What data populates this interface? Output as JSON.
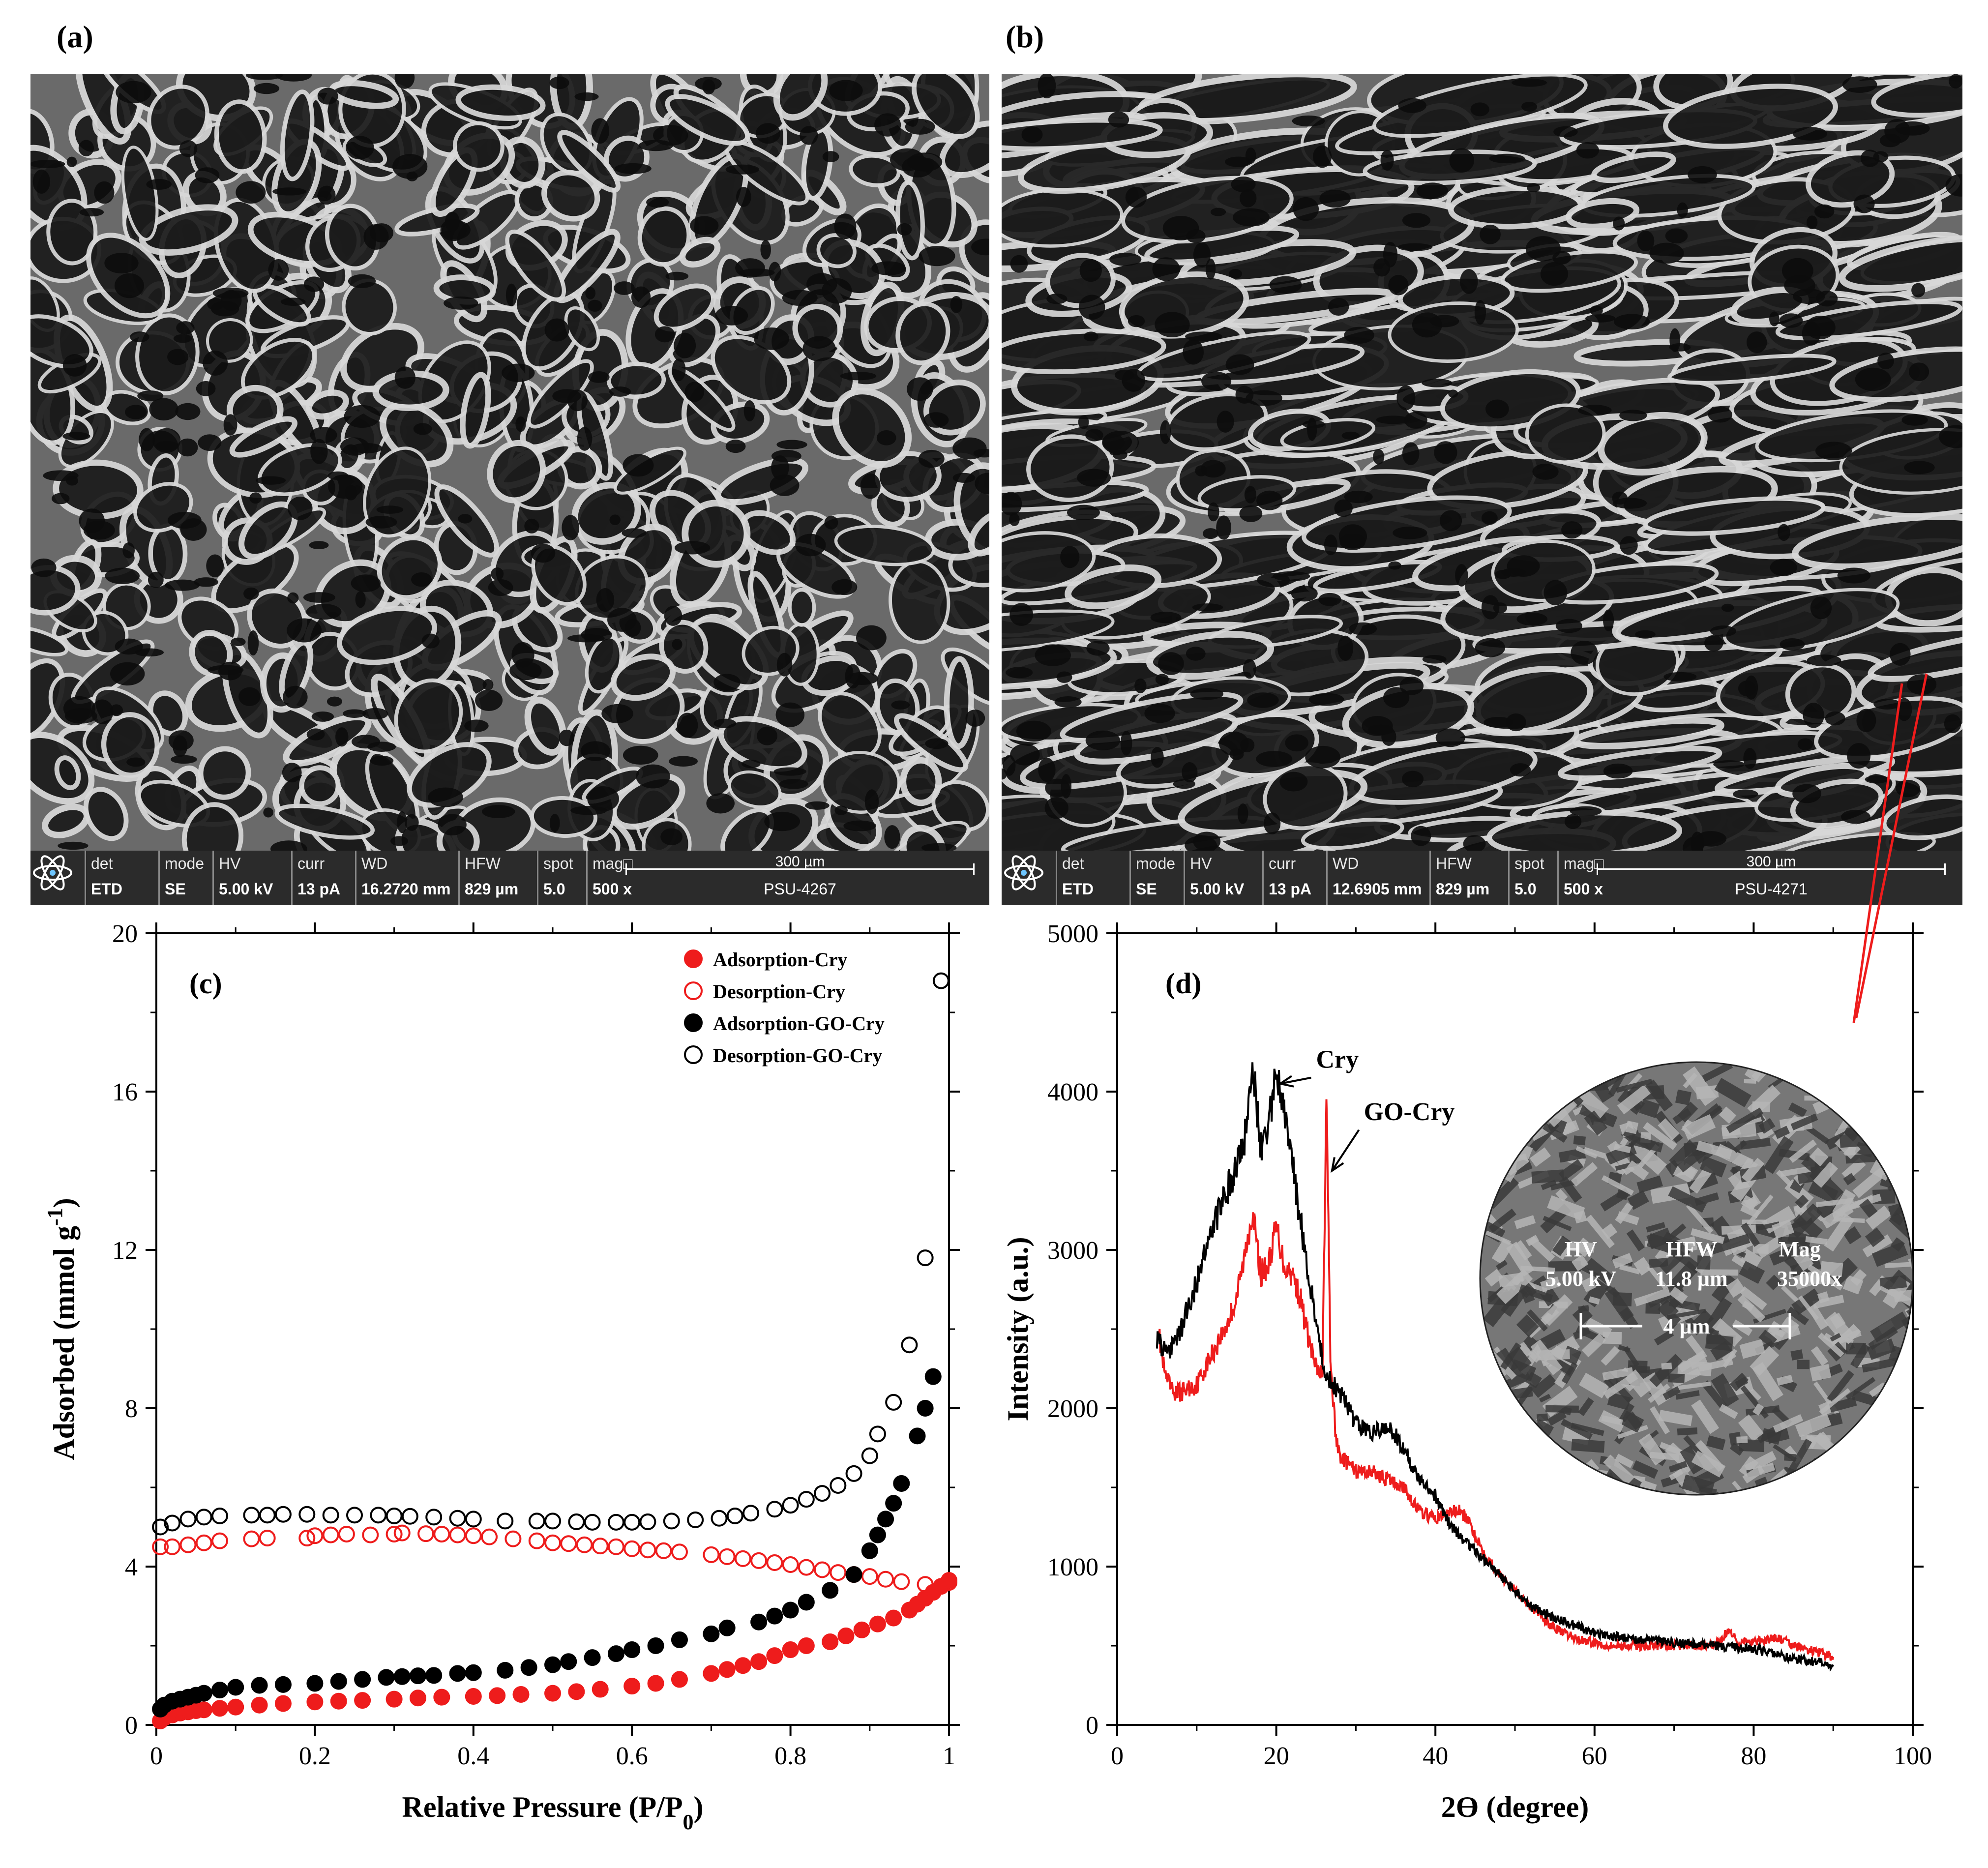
{
  "panels": {
    "a": {
      "label": "(a)",
      "databar": {
        "cells": [
          {
            "k": "det",
            "v": "ETD"
          },
          {
            "k": "mode",
            "v": "SE"
          },
          {
            "k": "HV",
            "v": "5.00 kV"
          },
          {
            "k": "curr",
            "v": "13 pA"
          },
          {
            "k": "WD",
            "v": "16.2720 mm"
          },
          {
            "k": "HFW",
            "v": "829 µm"
          },
          {
            "k": "spot",
            "v": "5.0"
          },
          {
            "k": "mag□",
            "v": "500 x"
          }
        ],
        "scale": "300 µm",
        "id": "PSU-4267"
      }
    },
    "b": {
      "label": "(b)",
      "databar": {
        "cells": [
          {
            "k": "det",
            "v": "ETD"
          },
          {
            "k": "mode",
            "v": "SE"
          },
          {
            "k": "HV",
            "v": "5.00 kV"
          },
          {
            "k": "curr",
            "v": "13 pA"
          },
          {
            "k": "WD",
            "v": "12.6905 mm"
          },
          {
            "k": "HFW",
            "v": "829 µm"
          },
          {
            "k": "spot",
            "v": "5.0"
          },
          {
            "k": "mag□",
            "v": "500 x"
          }
        ],
        "scale": "300 µm",
        "id": "PSU-4271"
      },
      "inset": {
        "hv_k": "HV",
        "hv_v": "5.00 kV",
        "hfw_k": "HFW",
        "hfw_v": "11.8 µm",
        "mag_k": "Mag",
        "mag_v": "35000x",
        "scale": "4 µm"
      }
    },
    "c": {
      "label": "(c)"
    },
    "d": {
      "label": "(d)"
    }
  },
  "colors": {
    "red": "#ee1c1c",
    "black": "#000000"
  },
  "chart_data": [
    {
      "type": "scatter",
      "panel": "(c)",
      "xlabel": "Relative Pressure (P/P",
      "xlabel_sub": "0",
      "xlabel_end": ")",
      "ylabel": "Adsorbed (mmol g",
      "ylabel_sup": "-1",
      "ylabel_end": ")",
      "xlim": [
        0,
        1
      ],
      "ylim": [
        0,
        20
      ],
      "xticks": [
        "0",
        "0.2",
        "0.4",
        "0.6",
        "0.8",
        "1"
      ],
      "yticks": [
        "0",
        "4",
        "8",
        "12",
        "16",
        "20"
      ],
      "legend_position": "top-right",
      "series": [
        {
          "name": "Adsorption-Cry",
          "color": "#ee1c1c",
          "filled": true,
          "x": [
            0.005,
            0.01,
            0.02,
            0.03,
            0.04,
            0.05,
            0.06,
            0.08,
            0.1,
            0.13,
            0.16,
            0.2,
            0.23,
            0.26,
            0.3,
            0.33,
            0.36,
            0.4,
            0.43,
            0.46,
            0.5,
            0.53,
            0.56,
            0.6,
            0.63,
            0.66,
            0.7,
            0.72,
            0.74,
            0.76,
            0.78,
            0.8,
            0.82,
            0.85,
            0.87,
            0.89,
            0.91,
            0.93,
            0.95,
            0.96,
            0.97,
            0.98,
            0.99,
            1.0
          ],
          "y": [
            0.1,
            0.18,
            0.25,
            0.3,
            0.33,
            0.36,
            0.38,
            0.42,
            0.45,
            0.5,
            0.54,
            0.58,
            0.6,
            0.62,
            0.65,
            0.68,
            0.7,
            0.72,
            0.74,
            0.77,
            0.8,
            0.84,
            0.9,
            0.98,
            1.05,
            1.15,
            1.3,
            1.4,
            1.5,
            1.6,
            1.75,
            1.9,
            2.0,
            2.1,
            2.25,
            2.4,
            2.55,
            2.7,
            2.9,
            3.05,
            3.2,
            3.35,
            3.5,
            3.65
          ]
        },
        {
          "name": "Desorption-Cry",
          "color": "#ee1c1c",
          "filled": false,
          "x": [
            0.005,
            0.02,
            0.04,
            0.06,
            0.08,
            0.12,
            0.14,
            0.19,
            0.2,
            0.22,
            0.24,
            0.27,
            0.3,
            0.31,
            0.34,
            0.36,
            0.38,
            0.4,
            0.42,
            0.45,
            0.48,
            0.5,
            0.52,
            0.54,
            0.56,
            0.58,
            0.6,
            0.62,
            0.64,
            0.66,
            0.7,
            0.72,
            0.74,
            0.76,
            0.78,
            0.8,
            0.82,
            0.84,
            0.86,
            0.88,
            0.9,
            0.92,
            0.94,
            0.97,
            1.0
          ],
          "y": [
            4.5,
            4.5,
            4.55,
            4.6,
            4.65,
            4.7,
            4.72,
            4.72,
            4.78,
            4.8,
            4.82,
            4.8,
            4.82,
            4.85,
            4.83,
            4.82,
            4.8,
            4.78,
            4.75,
            4.7,
            4.65,
            4.6,
            4.58,
            4.55,
            4.52,
            4.5,
            4.45,
            4.42,
            4.4,
            4.37,
            4.3,
            4.25,
            4.2,
            4.15,
            4.1,
            4.05,
            3.98,
            3.92,
            3.85,
            3.8,
            3.75,
            3.68,
            3.62,
            3.55,
            3.6
          ]
        },
        {
          "name": "Adsorption-GO-Cry",
          "color": "#000000",
          "filled": true,
          "x": [
            0.005,
            0.01,
            0.02,
            0.03,
            0.04,
            0.05,
            0.06,
            0.08,
            0.1,
            0.13,
            0.16,
            0.2,
            0.23,
            0.26,
            0.29,
            0.31,
            0.33,
            0.35,
            0.38,
            0.4,
            0.44,
            0.47,
            0.5,
            0.52,
            0.55,
            0.58,
            0.6,
            0.63,
            0.66,
            0.7,
            0.72,
            0.76,
            0.78,
            0.8,
            0.82,
            0.85,
            0.88,
            0.9,
            0.91,
            0.92,
            0.93,
            0.94,
            0.96,
            0.97,
            0.98
          ],
          "y": [
            0.4,
            0.5,
            0.6,
            0.65,
            0.7,
            0.75,
            0.8,
            0.88,
            0.95,
            1.0,
            1.02,
            1.05,
            1.1,
            1.15,
            1.2,
            1.22,
            1.24,
            1.25,
            1.3,
            1.32,
            1.38,
            1.45,
            1.52,
            1.6,
            1.7,
            1.8,
            1.9,
            2.0,
            2.15,
            2.3,
            2.45,
            2.6,
            2.75,
            2.9,
            3.1,
            3.4,
            3.8,
            4.4,
            4.8,
            5.2,
            5.6,
            6.1,
            7.3,
            8.0,
            8.8
          ]
        },
        {
          "name": "Desorption-GO-Cry",
          "color": "#000000",
          "filled": false,
          "x": [
            0.005,
            0.02,
            0.04,
            0.06,
            0.08,
            0.12,
            0.14,
            0.16,
            0.19,
            0.22,
            0.25,
            0.28,
            0.3,
            0.32,
            0.35,
            0.38,
            0.4,
            0.44,
            0.48,
            0.5,
            0.53,
            0.55,
            0.58,
            0.6,
            0.62,
            0.65,
            0.68,
            0.71,
            0.73,
            0.75,
            0.78,
            0.8,
            0.82,
            0.84,
            0.86,
            0.88,
            0.9,
            0.91,
            0.93,
            0.95,
            0.97,
            0.99
          ],
          "y": [
            5.0,
            5.1,
            5.2,
            5.25,
            5.28,
            5.3,
            5.3,
            5.32,
            5.32,
            5.3,
            5.3,
            5.3,
            5.28,
            5.27,
            5.25,
            5.22,
            5.2,
            5.15,
            5.15,
            5.15,
            5.13,
            5.12,
            5.12,
            5.12,
            5.13,
            5.15,
            5.18,
            5.22,
            5.28,
            5.35,
            5.45,
            5.55,
            5.7,
            5.85,
            6.05,
            6.35,
            6.8,
            7.35,
            8.15,
            9.6,
            11.8,
            18.8
          ]
        }
      ]
    },
    {
      "type": "line",
      "panel": "(d)",
      "xlabel": "2Ɵ (degree)",
      "ylabel": "Intensity (a.u.)",
      "xlim": [
        0,
        100
      ],
      "ylim": [
        0,
        5000
      ],
      "xticks": [
        "0",
        "20",
        "40",
        "60",
        "80",
        "100"
      ],
      "yticks": [
        "0",
        "1000",
        "2000",
        "3000",
        "4000",
        "5000"
      ],
      "annotations": [
        {
          "text": "Cry",
          "x": 25,
          "y": 4150,
          "arrow_to_x": 20.5,
          "arrow_to_y": 4050
        },
        {
          "text": "GO-Cry",
          "x": 31,
          "y": 3820,
          "arrow_to_x": 27,
          "arrow_to_y": 3500
        }
      ],
      "series": [
        {
          "name": "Cry",
          "color": "#000000",
          "x": [
            5,
            6,
            7,
            8,
            10,
            12,
            14,
            15,
            16,
            17,
            18,
            19,
            20,
            21,
            22,
            23,
            24,
            25,
            26,
            27,
            28,
            30,
            32,
            34,
            36,
            38,
            40,
            42,
            44,
            46,
            48,
            50,
            52,
            54,
            56,
            58,
            60,
            62,
            65,
            70,
            75,
            80,
            85,
            90
          ],
          "y": [
            2450,
            2350,
            2400,
            2500,
            2800,
            3150,
            3400,
            3500,
            3700,
            4200,
            3650,
            3800,
            4100,
            3850,
            3550,
            3200,
            2850,
            2550,
            2250,
            2150,
            2100,
            1900,
            1850,
            1900,
            1750,
            1550,
            1450,
            1250,
            1150,
            1050,
            950,
            850,
            750,
            700,
            650,
            620,
            580,
            560,
            540,
            520,
            500,
            480,
            420,
            380
          ]
        },
        {
          "name": "GO-Cry",
          "color": "#ee1c1c",
          "x": [
            5,
            6,
            7,
            8,
            10,
            12,
            14,
            15,
            16,
            17,
            18,
            19,
            20,
            21,
            22,
            23,
            24,
            25,
            25.8,
            26.3,
            26.8,
            27.5,
            28,
            30,
            32,
            34,
            36,
            38,
            40,
            42,
            43,
            44,
            46,
            48,
            50,
            52,
            54,
            56,
            58,
            60,
            62,
            65,
            70,
            75,
            77,
            78,
            80,
            83,
            85,
            90
          ],
          "y": [
            2550,
            2200,
            2100,
            2100,
            2150,
            2350,
            2550,
            2700,
            2950,
            3250,
            2850,
            2900,
            3150,
            2900,
            2850,
            2700,
            2450,
            2250,
            2200,
            4000,
            2300,
            1800,
            1700,
            1600,
            1600,
            1550,
            1500,
            1350,
            1300,
            1350,
            1350,
            1300,
            1100,
            950,
            850,
            750,
            650,
            580,
            540,
            520,
            500,
            500,
            500,
            500,
            600,
            520,
            520,
            550,
            500,
            430
          ]
        }
      ]
    }
  ]
}
